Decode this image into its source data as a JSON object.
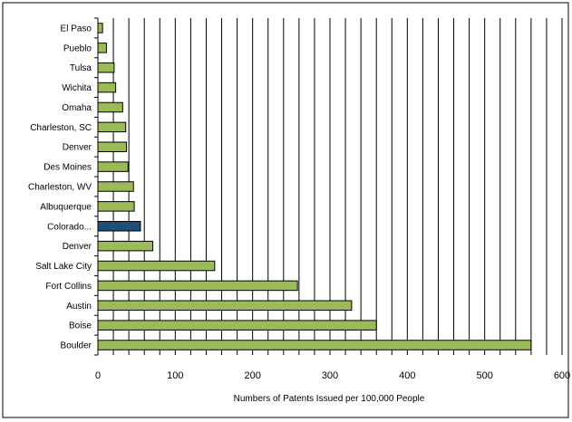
{
  "chart_data": {
    "type": "bar",
    "orientation": "horizontal",
    "title": "",
    "xlabel": "Numbers of Patents Issued per 100,000 People",
    "ylabel": "",
    "xlim": [
      0,
      600
    ],
    "xticks": [
      0,
      100,
      200,
      300,
      400,
      500,
      600
    ],
    "grid": "vertical",
    "legend": "none",
    "categories": [
      "El Paso",
      "Pueblo",
      "Tulsa",
      "Wichita",
      "Omaha",
      "Charleston, SC",
      "Denver",
      "Des Moines",
      "Charleston, WV",
      "Albuquerque",
      "Colorado...",
      "Denver",
      "Salt Lake City",
      "Fort Collins",
      "Austin",
      "Boise",
      "Boulder"
    ],
    "values": [
      6,
      11,
      21,
      23,
      32,
      36,
      37,
      39,
      46,
      47,
      55,
      71,
      151,
      258,
      328,
      360,
      560
    ],
    "highlight_index": 10,
    "colors": {
      "bar": "#9bbb59",
      "highlight": "#1f4e79",
      "outline": "#000000",
      "grid": "#000000",
      "frame": "#000000"
    }
  }
}
